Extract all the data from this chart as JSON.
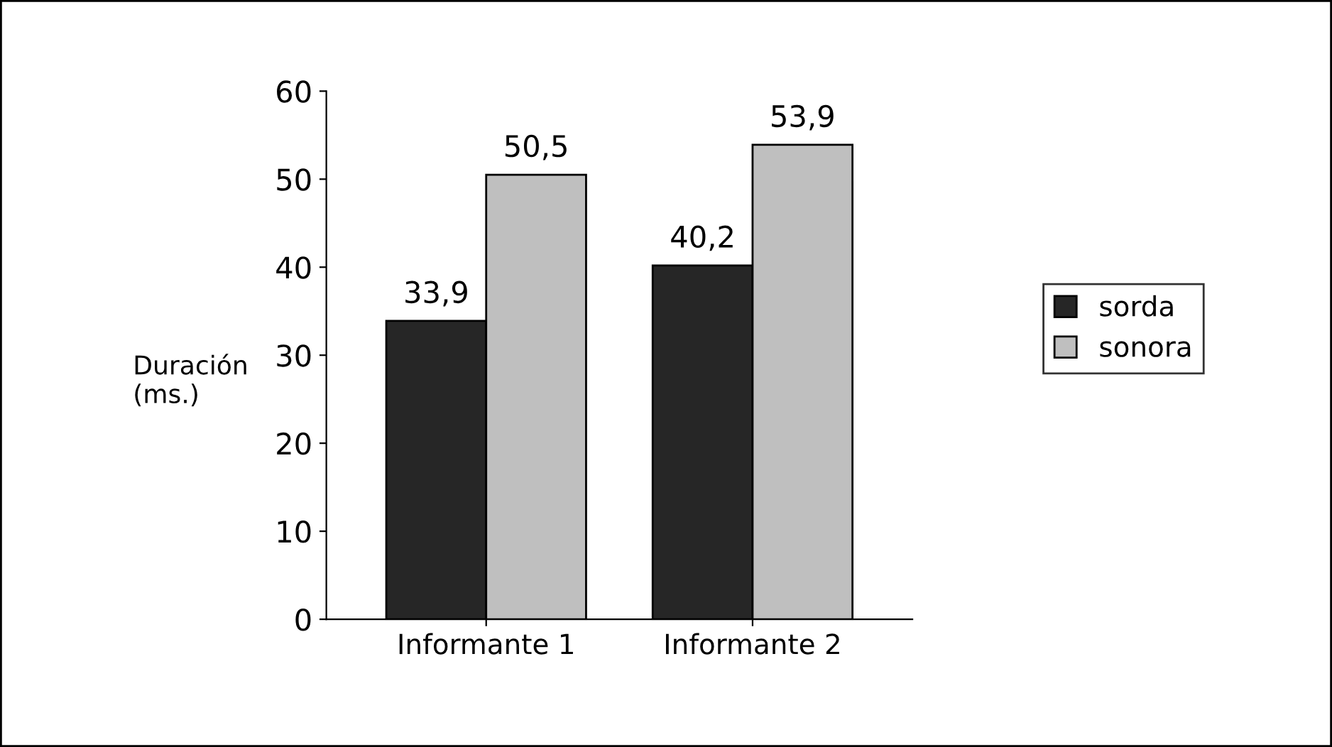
{
  "chart_data": {
    "type": "bar",
    "ylabel": "Duración\n(ms.)",
    "categories": [
      "Informante 1",
      "Informante 2"
    ],
    "series": [
      {
        "name": "sorda",
        "color": "#262626",
        "values": [
          33.9,
          40.2
        ],
        "value_labels": [
          "33,9",
          "40,2"
        ]
      },
      {
        "name": "sonora",
        "color": "#bfbfbf",
        "values": [
          50.5,
          53.9
        ],
        "value_labels": [
          "50,5",
          "53,9"
        ]
      }
    ],
    "ylim": [
      0,
      60
    ],
    "yticks": [
      0,
      10,
      20,
      30,
      40,
      50,
      60
    ],
    "grid": false,
    "legend": "right"
  }
}
